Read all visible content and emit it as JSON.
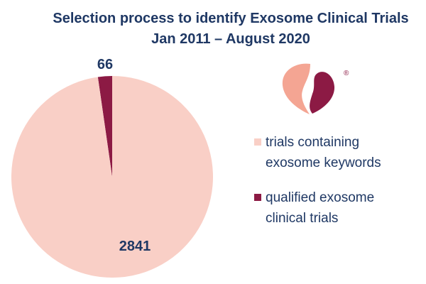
{
  "chart_data": {
    "type": "pie",
    "title": "Selection process to identify Exosome Clinical Trials",
    "subtitle": "Jan 2011 – August 2020",
    "slices": [
      {
        "name": "qualified exosome clinical trials",
        "value": 66,
        "color": "#8c1a44"
      },
      {
        "name": "trials containing exosome keywords",
        "value": 2841,
        "color": "#f9cfc6"
      }
    ],
    "legend_position": "right"
  },
  "logo": {
    "registered_mark": "®",
    "colors": [
      "#f4a593",
      "#8c1a44"
    ]
  }
}
